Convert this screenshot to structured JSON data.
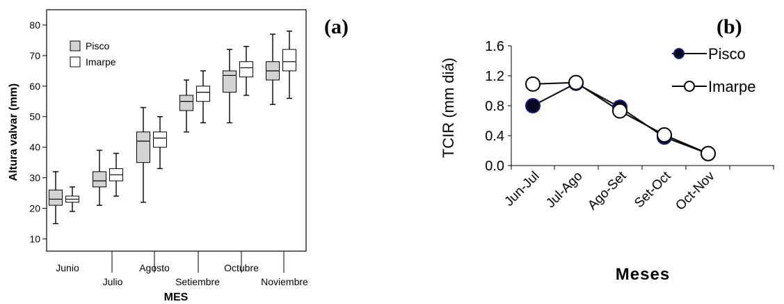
{
  "chart_data": [
    {
      "type": "box",
      "panel_label": "(a)",
      "xlabel": "MES",
      "ylabel": "Altura valvar (mm)",
      "ylim": [
        6,
        85
      ],
      "yticks": [
        10,
        20,
        30,
        40,
        50,
        60,
        70,
        80
      ],
      "categories": [
        "Junio",
        "Julio",
        "Agosto",
        "Setiembre",
        "Octubre",
        "Noviembre"
      ],
      "legend": {
        "position": "top-left",
        "items": [
          "Pisco",
          "Imarpe"
        ]
      },
      "series": [
        {
          "name": "Pisco",
          "fill": "#d3d3d3",
          "boxes": [
            {
              "min": 15,
              "q1": 21,
              "median": 23,
              "q3": 26,
              "max": 32
            },
            {
              "min": 21,
              "q1": 27,
              "median": 29,
              "q3": 32,
              "max": 39
            },
            {
              "min": 22,
              "q1": 35,
              "median": 42,
              "q3": 45,
              "max": 53
            },
            {
              "min": 45,
              "q1": 52,
              "median": 55,
              "q3": 57,
              "max": 62
            },
            {
              "min": 48,
              "q1": 58,
              "median": 63.5,
              "q3": 65,
              "max": 72
            },
            {
              "min": 54,
              "q1": 62,
              "median": 65,
              "q3": 68,
              "max": 77
            }
          ]
        },
        {
          "name": "Imarpe",
          "fill": "#ffffff",
          "boxes": [
            {
              "min": 19,
              "q1": 22,
              "median": 23,
              "q3": 24,
              "max": 27
            },
            {
              "min": 24,
              "q1": 29,
              "median": 31,
              "q3": 33,
              "max": 38
            },
            {
              "min": 33,
              "q1": 40,
              "median": 43,
              "q3": 45,
              "max": 50
            },
            {
              "min": 48,
              "q1": 55,
              "median": 58,
              "q3": 60,
              "max": 65
            },
            {
              "min": 57,
              "q1": 63,
              "median": 66,
              "q3": 68,
              "max": 73
            },
            {
              "min": 56,
              "q1": 65,
              "median": 68,
              "q3": 72,
              "max": 78
            }
          ]
        }
      ]
    },
    {
      "type": "line",
      "panel_label": "(b)",
      "xlabel": "Meses",
      "ylabel": "TCIR (mm diá)",
      "ylim": [
        0,
        1.6
      ],
      "yticks": [
        "0.0",
        "0.4",
        "0.8",
        "1.2",
        "1.6"
      ],
      "categories": [
        "Jun-Jul",
        "Jul-Ago",
        "Ago-Set",
        "Set-Oct",
        "Oct-Nov"
      ],
      "legend": {
        "position": "top-right",
        "items": [
          "Pisco",
          "Imarpe"
        ]
      },
      "series": [
        {
          "name": "Pisco",
          "marker_fill": "#0a0a1e",
          "marker_edge": "#1a1a8c",
          "values": [
            0.8,
            1.1,
            0.78,
            0.38,
            0.16
          ]
        },
        {
          "name": "Imarpe",
          "marker_fill": "#ffffff",
          "marker_edge": "#000000",
          "values": [
            1.09,
            1.11,
            0.73,
            0.41,
            0.16
          ]
        }
      ]
    }
  ]
}
